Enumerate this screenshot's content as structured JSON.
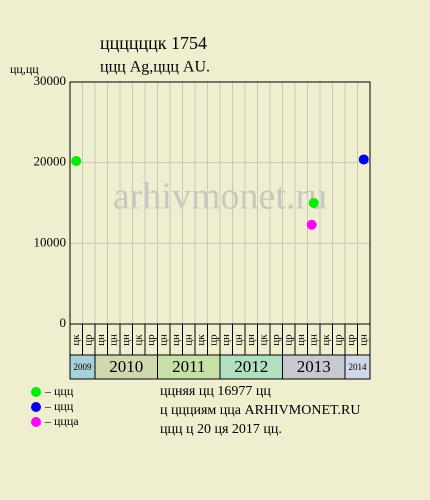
{
  "chart_data": {
    "type": "scatter",
    "title": "ццццццк 1754",
    "subtitle": "ццц Ag,ццц AU.",
    "y_label": "цц,цц",
    "watermark": "arhivmonet.ru",
    "categories": [
      "цк",
      "цр",
      "цн",
      "цн",
      "цн",
      "цк",
      "цр",
      "цн",
      "цн",
      "цн",
      "цк",
      "цр",
      "цн",
      "цн",
      "цн",
      "цк",
      "цр",
      "цр",
      "цн",
      "цн",
      "цк",
      "цр",
      "цр",
      "цн"
    ],
    "years": [
      "2009",
      "2010",
      "2011",
      "2012",
      "2013",
      "2014"
    ],
    "ylim": [
      0,
      30000
    ],
    "yticks": [
      0,
      10000,
      20000,
      30000
    ],
    "grid": true,
    "series": [
      {
        "name": "– ццц",
        "color": "#00ee00",
        "values": [
          20200,
          null,
          null,
          null,
          null,
          null,
          null,
          null,
          null,
          null,
          null,
          null,
          null,
          null,
          null,
          null,
          null,
          null,
          null,
          15000,
          null,
          null,
          null,
          null
        ]
      },
      {
        "name": "– ццц",
        "color": "#0000ee",
        "values": [
          null,
          null,
          null,
          null,
          null,
          null,
          null,
          null,
          null,
          null,
          null,
          null,
          null,
          null,
          null,
          null,
          null,
          null,
          null,
          null,
          null,
          null,
          null,
          20400
        ]
      },
      {
        "name": "– цццa",
        "color": "#ff00ff",
        "values": [
          null,
          null,
          null,
          null,
          null,
          null,
          null,
          null,
          null,
          null,
          null,
          null,
          null,
          null,
          null,
          null,
          null,
          null,
          null,
          12300,
          null,
          null,
          null,
          null
        ]
      }
    ],
    "notes": [
      "ццняя цц 16977 цц",
      "ц ццциям цца ARHIVMONET.RU",
      "ццц ц 20 ця 2017 цц."
    ]
  }
}
